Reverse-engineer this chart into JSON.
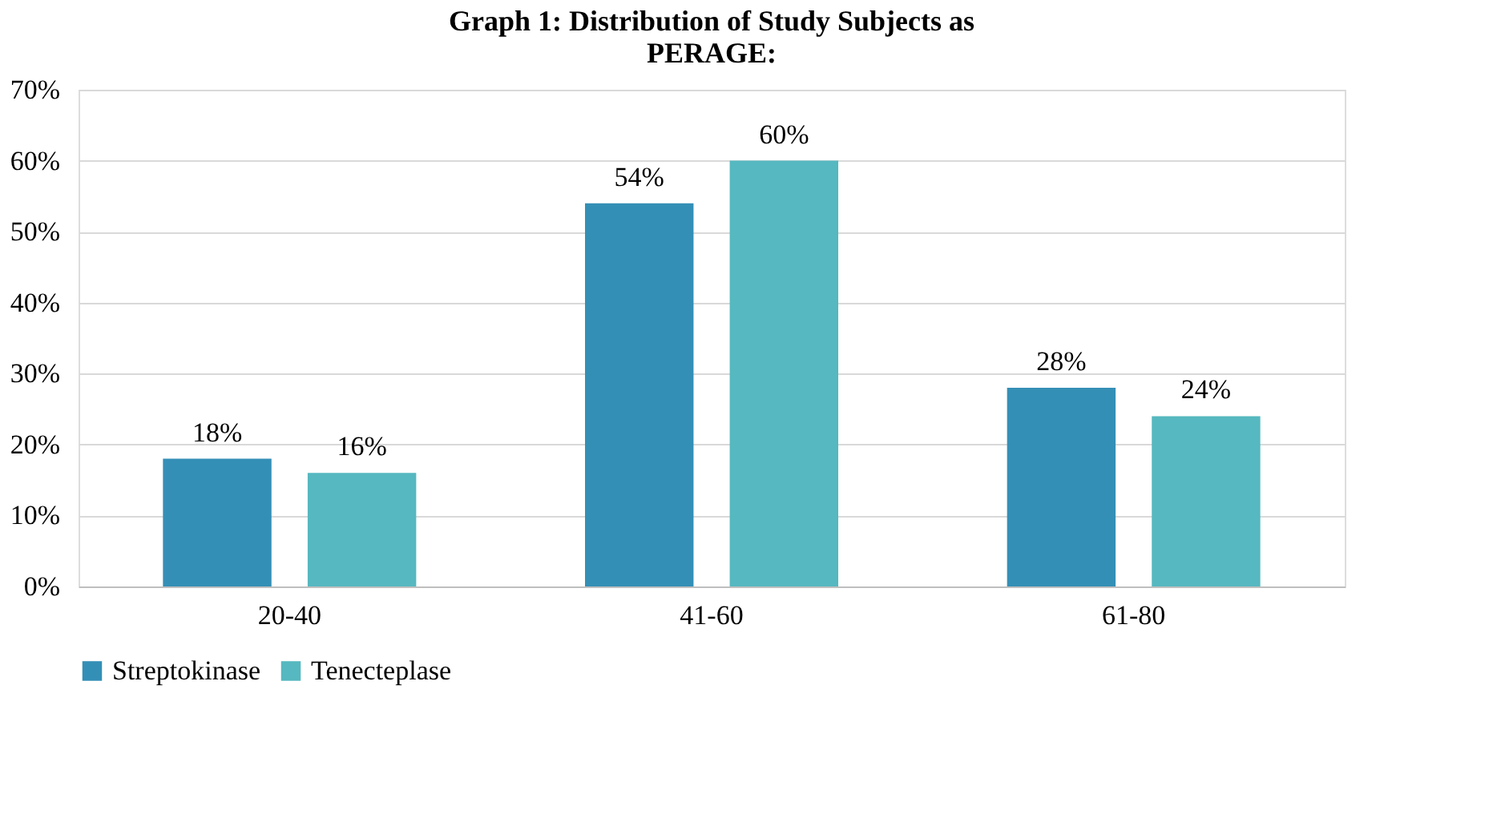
{
  "chart_data": {
    "type": "bar",
    "title": "Graph 1: Distribution of Study Subjects as PERAGE:",
    "categories": [
      "20-40",
      "41-60",
      "61-80"
    ],
    "series": [
      {
        "name": "Streptokinase",
        "color": "#348fb6",
        "values": [
          18,
          54,
          28
        ],
        "value_labels": [
          "18%",
          "54%",
          "28%"
        ]
      },
      {
        "name": "Tenecteplase",
        "color": "#56b8c0",
        "values": [
          16,
          60,
          24
        ],
        "value_labels": [
          "16%",
          "60%",
          "24%"
        ]
      }
    ],
    "ylim": [
      0,
      70
    ],
    "yticks": [
      {
        "value": 0,
        "label": "0%"
      },
      {
        "value": 10,
        "label": "10%"
      },
      {
        "value": 20,
        "label": "20%"
      },
      {
        "value": 30,
        "label": "30%"
      },
      {
        "value": 40,
        "label": "40%"
      },
      {
        "value": 50,
        "label": "50%"
      },
      {
        "value": 60,
        "label": "60%"
      },
      {
        "value": 70,
        "label": "70%"
      }
    ],
    "grid": "y",
    "legend": "bottom"
  }
}
